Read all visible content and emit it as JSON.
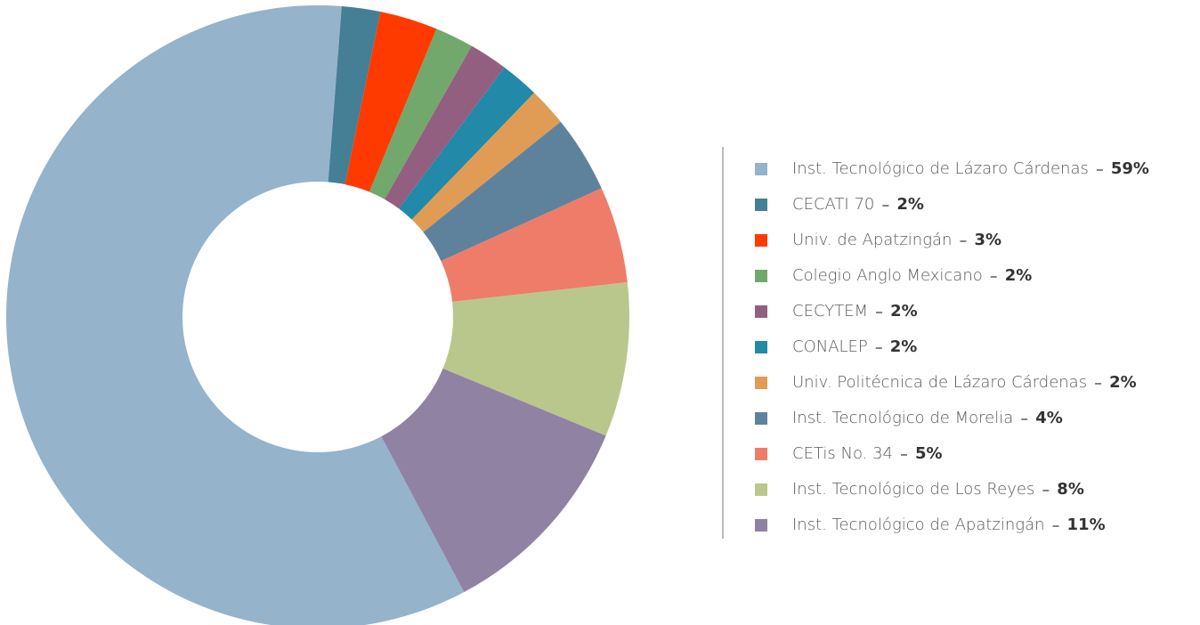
{
  "chart_data": {
    "type": "donut",
    "categories": [
      "Inst. Tecnológico de Lázaro Cárdenas",
      "CECATI 70",
      "Univ. de Apatzingán",
      "Colegio Anglo Mexicano",
      "CECYTEM",
      "CONALEP",
      "Univ. Politécnica de Lázaro Cárdenas",
      "Inst. Tecnológico de Morelia",
      "CETis No. 34",
      "Inst. Tecnológico de Los Reyes",
      "Inst. Tecnológico de Apatzingán"
    ],
    "values": [
      59,
      2,
      3,
      2,
      2,
      2,
      2,
      4,
      5,
      8,
      11
    ],
    "value_labels": [
      "59%",
      "2%",
      "3%",
      "2%",
      "2%",
      "2%",
      "2%",
      "4%",
      "5%",
      "8%",
      "11%"
    ],
    "colors": [
      "#95b3cb",
      "#447f95",
      "#ff3a00",
      "#72a86b",
      "#935f80",
      "#2289a8",
      "#e09c55",
      "#5f829c",
      "#ef7c69",
      "#b9c78c",
      "#9082a3"
    ],
    "legend": "right"
  }
}
